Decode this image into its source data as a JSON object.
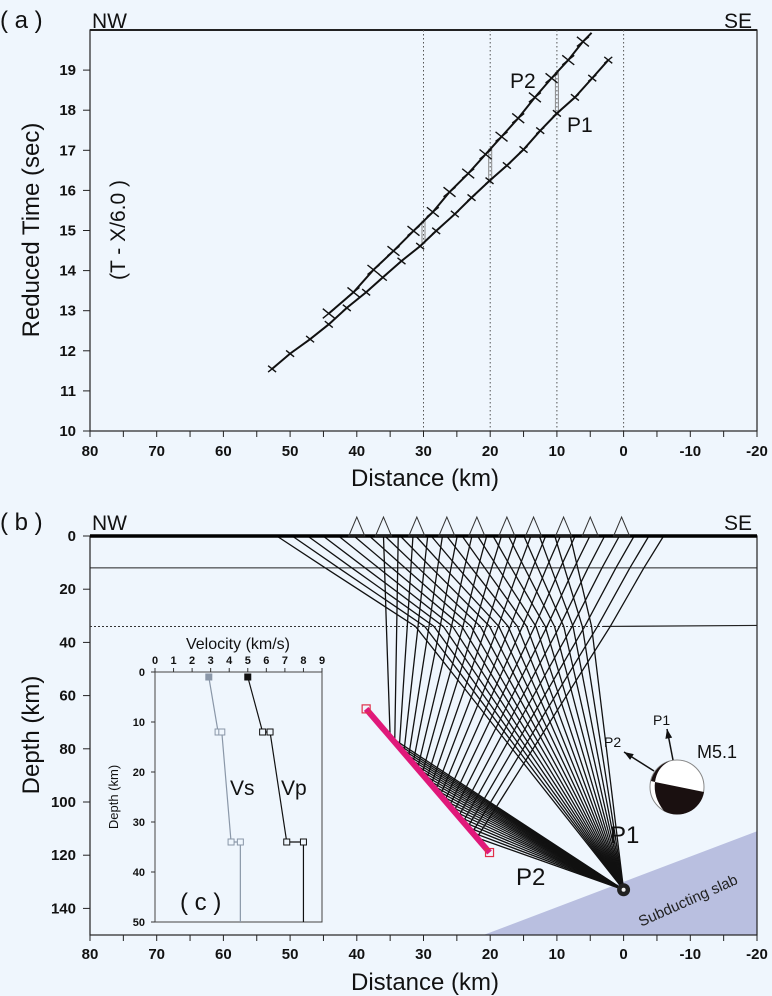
{
  "colors": {
    "background": "#eff6fd",
    "reflector": "#e0197a",
    "slab": "#b9bfe0",
    "vs_line": "#8a97a8",
    "vp_line": "#111111"
  },
  "chart_data": [
    {
      "type": "line",
      "panel_label": "( a )",
      "left_label": "NW",
      "right_label": "SE",
      "xlabel": "Distance  (km)",
      "ylabel": "Reduced Time (sec)",
      "ylabel_secondary": "(T - X/6.0 )",
      "xlim": [
        80,
        -20
      ],
      "ylim": [
        10,
        20
      ],
      "xticks": [
        "80",
        "70",
        "60",
        "50",
        "40",
        "30",
        "20",
        "10",
        "0",
        "-10",
        "-20"
      ],
      "yticks": [
        "10",
        "11",
        "12",
        "13",
        "14",
        "15",
        "16",
        "17",
        "18",
        "19"
      ],
      "reference_lines_km": [
        30,
        20,
        10,
        0
      ],
      "grid": false,
      "series": [
        {
          "name": "P1",
          "x": [
            52.7,
            50.0,
            47.0,
            44.2,
            41.5,
            38.6,
            36.1,
            33.3,
            30.5,
            28.1,
            25.3,
            22.8,
            20.1,
            17.5,
            15.0,
            12.5,
            10.0,
            7.3,
            4.7,
            2.3
          ],
          "y": [
            11.55,
            11.93,
            12.29,
            12.66,
            13.07,
            13.46,
            13.83,
            14.24,
            14.61,
            14.99,
            15.41,
            15.82,
            16.24,
            16.62,
            17.02,
            17.49,
            17.92,
            18.32,
            18.8,
            19.25
          ]
        },
        {
          "name": "P2",
          "x": [
            44.2,
            40.5,
            37.5,
            34.5,
            31.5,
            28.6,
            26.1,
            23.3,
            20.7,
            18.3,
            15.8,
            13.3,
            10.8,
            8.3,
            6.1,
            4.8
          ],
          "y": [
            12.93,
            13.46,
            14.02,
            14.49,
            14.99,
            15.46,
            15.96,
            16.42,
            16.9,
            17.34,
            17.8,
            18.32,
            18.8,
            19.25,
            19.71,
            19.93
          ]
        }
      ]
    },
    {
      "type": "diagram",
      "panel_label": "( b )",
      "left_label": "NW",
      "right_label": "SE",
      "xlabel": "Distance  (km)",
      "ylabel": "Depth (km)",
      "xlim": [
        80,
        -20
      ],
      "ylim": [
        0,
        150
      ],
      "xticks": [
        "80",
        "70",
        "60",
        "50",
        "40",
        "30",
        "20",
        "10",
        "0",
        "-10",
        "-20"
      ],
      "yticks": [
        "0",
        "20",
        "40",
        "60",
        "80",
        "100",
        "120",
        "140"
      ],
      "layer_depths_km": [
        12,
        34
      ],
      "stations_km": [
        40,
        36,
        31,
        26.5,
        22,
        17.5,
        13.5,
        9,
        5,
        0.3
      ],
      "hypocenter": {
        "distance_km": 0,
        "depth_km": 133
      },
      "reflector": {
        "start": {
          "distance_km": 38.6,
          "depth_km": 65
        },
        "end": {
          "distance_km": 20.1,
          "depth_km": 119
        }
      },
      "slab": {
        "label": "Subducting slab",
        "top_left": {
          "distance_km": 21,
          "depth_km": 150
        },
        "right_edge_depth_km": 111
      },
      "ray_labels": {
        "p1": "P1",
        "p2": "P2"
      },
      "focal_mechanism": {
        "magnitude": "M5.1",
        "arrow_p1": "P1",
        "arrow_p2": "P2"
      }
    },
    {
      "type": "line",
      "panel_label": "( c )",
      "title": "Velocity  (km/s)",
      "ylabel": "Depth (km)",
      "xlim": [
        0,
        9
      ],
      "ylim": [
        0,
        50
      ],
      "xticks": [
        "0",
        "1",
        "2",
        "3",
        "4",
        "5",
        "6",
        "7",
        "8",
        "9"
      ],
      "yticks": [
        "0",
        "10",
        "20",
        "30",
        "40",
        "50"
      ],
      "series": [
        {
          "name": "Vs",
          "x": [
            2.9,
            3.4,
            3.6,
            4.1,
            4.6,
            4.6
          ],
          "y": [
            1,
            12,
            12,
            34,
            34,
            50
          ]
        },
        {
          "name": "Vp",
          "x": [
            5.0,
            5.8,
            6.2,
            7.1,
            8.0,
            8.0
          ],
          "y": [
            1,
            12,
            12,
            34,
            34,
            50
          ]
        }
      ]
    }
  ]
}
